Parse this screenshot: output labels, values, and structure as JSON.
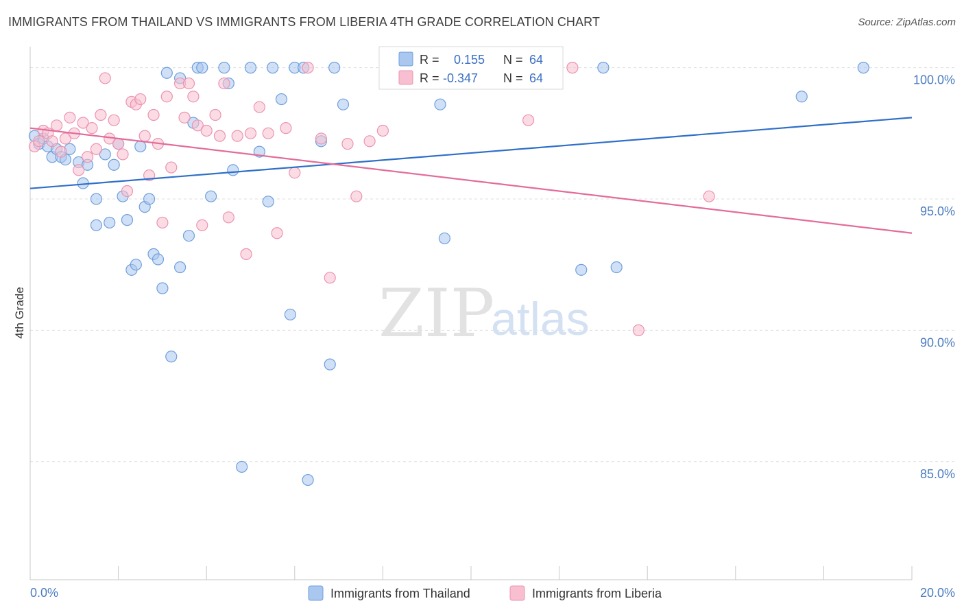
{
  "title": "IMMIGRANTS FROM THAILAND VS IMMIGRANTS FROM LIBERIA 4TH GRADE CORRELATION CHART",
  "source": "Source: ZipAtlas.com",
  "watermark": {
    "zip": "ZIP",
    "atlas": "atlas"
  },
  "colors": {
    "thailand_fill": "#a9c7ef",
    "thailand_stroke": "#6f9fdc",
    "thailand_line": "#2f6fc8",
    "liberia_fill": "#f7bfd0",
    "liberia_stroke": "#ec93b0",
    "liberia_line": "#e36c99",
    "grid": "#dddddd",
    "tick_text": "#4a7cc0"
  },
  "legend_box": {
    "rows": [
      {
        "r_label": "R =",
        "r_value": "0.155",
        "n_label": "N =",
        "n_value": "64"
      },
      {
        "r_label": "R =",
        "r_value": "-0.347",
        "n_label": "N =",
        "n_value": "64"
      }
    ]
  },
  "bottom_legend": [
    "Immigrants from Thailand",
    "Immigrants from Liberia"
  ],
  "chart_data": {
    "type": "scatter",
    "title": "IMMIGRANTS FROM THAILAND VS IMMIGRANTS FROM LIBERIA 4TH GRADE CORRELATION CHART",
    "ylabel": "4th Grade",
    "xlabel": "",
    "xlim": [
      0,
      20
    ],
    "ylim": [
      80.5,
      100.8
    ],
    "x_tick_labels": [
      "0.0%",
      "20.0%"
    ],
    "y_ticks": [
      85,
      90,
      95,
      100
    ],
    "y_tick_labels": [
      "85.0%",
      "90.0%",
      "95.0%",
      "100.0%"
    ],
    "grid": true,
    "legend_position": "bottom",
    "series": [
      {
        "name": "Immigrants from Thailand",
        "r": 0.155,
        "n": 64,
        "trend": {
          "x": [
            0,
            20
          ],
          "y": [
            95.4,
            98.1
          ]
        },
        "points": [
          [
            0.1,
            97.4
          ],
          [
            0.2,
            97.1
          ],
          [
            0.3,
            97.3
          ],
          [
            0.4,
            97.0
          ],
          [
            0.5,
            96.6
          ],
          [
            0.6,
            96.9
          ],
          [
            0.7,
            96.6
          ],
          [
            0.8,
            96.5
          ],
          [
            0.9,
            96.9
          ],
          [
            1.1,
            96.4
          ],
          [
            1.2,
            95.6
          ],
          [
            1.3,
            96.3
          ],
          [
            1.5,
            94.0
          ],
          [
            1.5,
            95.0
          ],
          [
            1.7,
            96.7
          ],
          [
            1.8,
            94.1
          ],
          [
            1.9,
            96.3
          ],
          [
            2.0,
            97.1
          ],
          [
            2.1,
            95.1
          ],
          [
            2.2,
            94.2
          ],
          [
            2.3,
            92.3
          ],
          [
            2.4,
            92.5
          ],
          [
            2.5,
            97.0
          ],
          [
            2.6,
            94.7
          ],
          [
            2.7,
            95.0
          ],
          [
            2.8,
            92.9
          ],
          [
            2.9,
            92.7
          ],
          [
            3.0,
            91.6
          ],
          [
            3.1,
            99.8
          ],
          [
            3.2,
            89.0
          ],
          [
            3.4,
            99.6
          ],
          [
            3.4,
            92.4
          ],
          [
            3.6,
            93.6
          ],
          [
            3.7,
            97.9
          ],
          [
            3.8,
            100.0
          ],
          [
            3.9,
            100.0
          ],
          [
            4.1,
            95.1
          ],
          [
            4.4,
            100.0
          ],
          [
            4.5,
            99.4
          ],
          [
            4.6,
            96.1
          ],
          [
            4.8,
            84.8
          ],
          [
            5.0,
            100.0
          ],
          [
            5.2,
            96.8
          ],
          [
            5.4,
            94.9
          ],
          [
            5.5,
            100.0
          ],
          [
            5.7,
            98.8
          ],
          [
            5.9,
            90.6
          ],
          [
            6.0,
            100.0
          ],
          [
            6.2,
            100.0
          ],
          [
            6.3,
            84.3
          ],
          [
            6.6,
            97.2
          ],
          [
            6.8,
            88.7
          ],
          [
            6.9,
            100.0
          ],
          [
            7.1,
            98.6
          ],
          [
            8.6,
            100.0
          ],
          [
            9.3,
            98.6
          ],
          [
            9.4,
            93.5
          ],
          [
            10.4,
            100.0
          ],
          [
            11.4,
            100.0
          ],
          [
            12.5,
            92.3
          ],
          [
            13.0,
            100.0
          ],
          [
            13.3,
            92.4
          ],
          [
            17.5,
            98.9
          ],
          [
            18.9,
            100.0
          ]
        ]
      },
      {
        "name": "Immigrants from Liberia",
        "r": -0.347,
        "n": 64,
        "trend": {
          "x": [
            0,
            20
          ],
          "y": [
            97.7,
            93.7
          ]
        },
        "points": [
          [
            0.1,
            97.0
          ],
          [
            0.2,
            97.2
          ],
          [
            0.3,
            97.6
          ],
          [
            0.4,
            97.5
          ],
          [
            0.5,
            97.2
          ],
          [
            0.6,
            97.8
          ],
          [
            0.7,
            96.8
          ],
          [
            0.8,
            97.3
          ],
          [
            0.9,
            98.1
          ],
          [
            1.0,
            97.5
          ],
          [
            1.1,
            96.1
          ],
          [
            1.2,
            97.9
          ],
          [
            1.3,
            96.6
          ],
          [
            1.4,
            97.7
          ],
          [
            1.5,
            96.9
          ],
          [
            1.6,
            98.2
          ],
          [
            1.7,
            99.6
          ],
          [
            1.8,
            97.3
          ],
          [
            1.9,
            98.0
          ],
          [
            2.0,
            97.1
          ],
          [
            2.1,
            96.7
          ],
          [
            2.2,
            95.3
          ],
          [
            2.3,
            98.7
          ],
          [
            2.4,
            98.6
          ],
          [
            2.5,
            98.8
          ],
          [
            2.6,
            97.4
          ],
          [
            2.7,
            95.9
          ],
          [
            2.8,
            98.2
          ],
          [
            2.9,
            97.1
          ],
          [
            3.0,
            94.1
          ],
          [
            3.1,
            98.9
          ],
          [
            3.2,
            96.2
          ],
          [
            3.4,
            99.4
          ],
          [
            3.5,
            98.1
          ],
          [
            3.6,
            99.4
          ],
          [
            3.7,
            98.9
          ],
          [
            3.8,
            97.8
          ],
          [
            3.9,
            94.0
          ],
          [
            4.0,
            97.6
          ],
          [
            4.2,
            98.2
          ],
          [
            4.3,
            97.4
          ],
          [
            4.4,
            99.4
          ],
          [
            4.5,
            94.3
          ],
          [
            4.7,
            97.4
          ],
          [
            4.9,
            92.9
          ],
          [
            5.0,
            97.5
          ],
          [
            5.2,
            98.5
          ],
          [
            5.4,
            97.5
          ],
          [
            5.6,
            93.7
          ],
          [
            5.8,
            97.7
          ],
          [
            6.0,
            96.0
          ],
          [
            6.3,
            100.0
          ],
          [
            6.6,
            97.3
          ],
          [
            6.8,
            92.0
          ],
          [
            7.2,
            97.1
          ],
          [
            7.4,
            95.1
          ],
          [
            7.7,
            97.2
          ],
          [
            8.0,
            97.6
          ],
          [
            9.4,
            100.0
          ],
          [
            11.3,
            98.0
          ],
          [
            11.5,
            100.0
          ],
          [
            12.3,
            100.0
          ],
          [
            13.8,
            90.0
          ],
          [
            15.4,
            95.1
          ]
        ]
      }
    ]
  }
}
